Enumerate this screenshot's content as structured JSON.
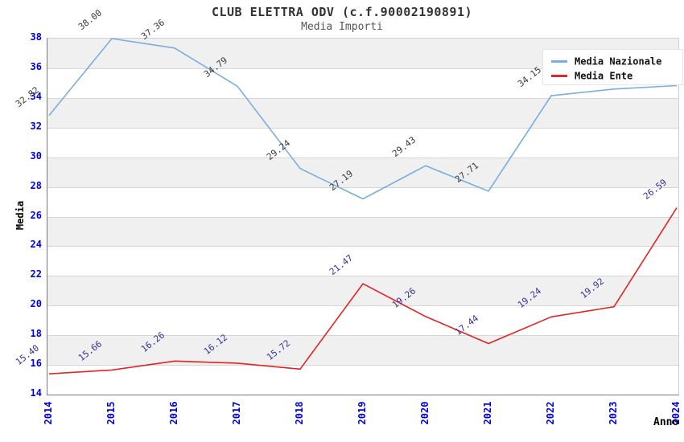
{
  "chart_data": {
    "type": "line",
    "title": "CLUB ELETTRA ODV (c.f.90002190891)",
    "subtitle": "Media Importi",
    "xlabel": "Anno",
    "ylabel": "Media",
    "x": [
      2014,
      2015,
      2016,
      2017,
      2018,
      2019,
      2020,
      2021,
      2022,
      2023,
      2024
    ],
    "ylim": [
      14,
      38
    ],
    "ytick_step": 2,
    "grid": "horizontal alternating bands, 2-unit stripes",
    "legend_position": "top-right",
    "colors": {
      "axis_tick_label": "#0000e0",
      "band_fill": "#f0f0f0",
      "gridline": "#d6d6d6",
      "title_text": "#333333"
    },
    "series": [
      {
        "name": "Media Nazionale",
        "color": "#79aede",
        "label_color": "#3a3a3a",
        "values": [
          32.82,
          38.0,
          37.36,
          34.79,
          29.24,
          27.19,
          29.43,
          27.71,
          34.15,
          34.6,
          34.83
        ],
        "labels": [
          "32.82",
          "38.00",
          "37.36",
          "34.79",
          "29.24",
          "27.19",
          "29.43",
          "27.71",
          "34.15",
          "34.60",
          "34.83"
        ]
      },
      {
        "name": "Media Ente",
        "color": "#e42424",
        "label_color": "#33339e",
        "values": [
          15.4,
          15.66,
          16.26,
          16.12,
          15.72,
          21.47,
          19.26,
          17.44,
          19.24,
          19.92,
          26.59
        ],
        "labels": [
          "15.40",
          "15.66",
          "16.26",
          "16.12",
          "15.72",
          "21.47",
          "19.26",
          "17.44",
          "19.24",
          "19.92",
          "26.59"
        ]
      }
    ]
  }
}
